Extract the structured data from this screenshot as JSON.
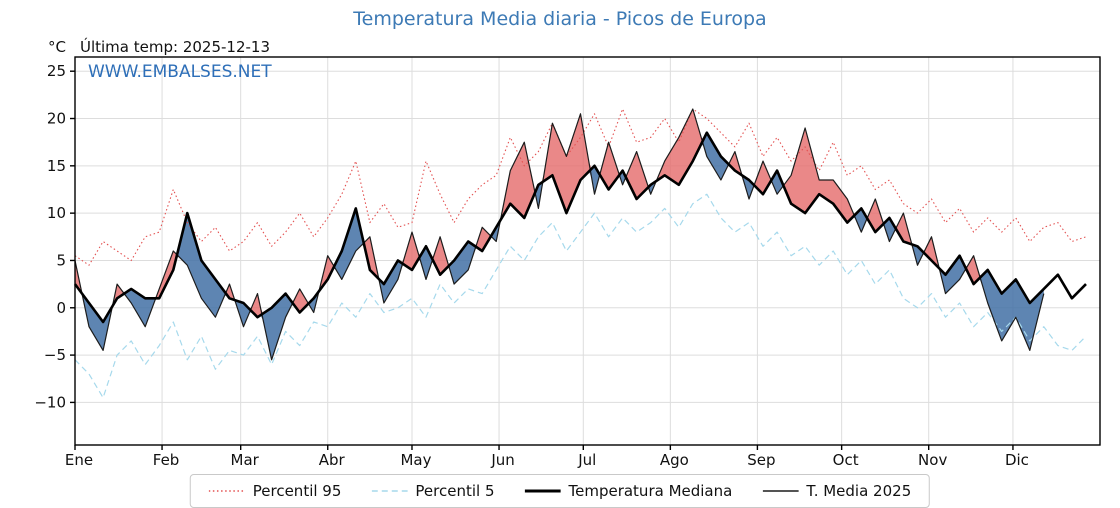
{
  "header": {
    "title": "Temperatura Media diaria - Picos de Europa",
    "unit_label": "°C",
    "last_temp_label": "Última temp: 2025-12-13",
    "watermark": "WWW.EMBALSES.NET"
  },
  "chart_data": {
    "type": "line",
    "title": "Temperatura Media diaria - Picos de Europa",
    "xlabel": "",
    "ylabel": "°C",
    "xlim": [
      0,
      365
    ],
    "ylim": [
      -14.5,
      26.5
    ],
    "grid": true,
    "legend_position": "bottom",
    "x_days": [
      0,
      5,
      10,
      15,
      20,
      25,
      30,
      35,
      40,
      45,
      50,
      55,
      60,
      65,
      70,
      75,
      80,
      85,
      90,
      95,
      100,
      105,
      110,
      115,
      120,
      125,
      130,
      135,
      140,
      145,
      150,
      155,
      160,
      165,
      170,
      175,
      180,
      185,
      190,
      195,
      200,
      205,
      210,
      215,
      220,
      225,
      230,
      235,
      240,
      245,
      250,
      255,
      260,
      265,
      270,
      275,
      280,
      285,
      290,
      295,
      300,
      305,
      310,
      315,
      320,
      325,
      330,
      335,
      340,
      345,
      350,
      355,
      360
    ],
    "x_ticks": [
      {
        "day": 0,
        "label": "Ene"
      },
      {
        "day": 31,
        "label": "Feb"
      },
      {
        "day": 59,
        "label": "Mar"
      },
      {
        "day": 90,
        "label": "Abr"
      },
      {
        "day": 120,
        "label": "May"
      },
      {
        "day": 151,
        "label": "Jun"
      },
      {
        "day": 181,
        "label": "Jul"
      },
      {
        "day": 212,
        "label": "Ago"
      },
      {
        "day": 243,
        "label": "Sep"
      },
      {
        "day": 273,
        "label": "Oct"
      },
      {
        "day": 304,
        "label": "Nov"
      },
      {
        "day": 334,
        "label": "Dic"
      }
    ],
    "y_ticks": [
      {
        "v": 25,
        "label": "25"
      },
      {
        "v": 20,
        "label": "20"
      },
      {
        "v": 15,
        "label": "15"
      },
      {
        "v": 10,
        "label": "10"
      },
      {
        "v": 5,
        "label": "5"
      },
      {
        "v": 0,
        "label": "0"
      },
      {
        "v": -5,
        "label": "−5"
      },
      {
        "v": -10,
        "label": "−10"
      }
    ],
    "series": [
      {
        "name": "Percentil 95",
        "color": "#e35151",
        "style": "dotted",
        "width": 1.1,
        "values": [
          5.5,
          4.5,
          7.0,
          6.0,
          5.0,
          7.5,
          8.0,
          12.5,
          9.0,
          7.0,
          8.5,
          6.0,
          7.0,
          9.0,
          6.5,
          8.0,
          10.0,
          7.5,
          9.5,
          12.0,
          15.5,
          9.0,
          11.0,
          8.5,
          9.0,
          15.5,
          12.0,
          9.0,
          11.5,
          13.0,
          14.0,
          18.0,
          15.0,
          16.5,
          19.5,
          16.0,
          18.0,
          20.5,
          17.0,
          21.0,
          17.5,
          18.0,
          20.0,
          17.5,
          21.0,
          20.0,
          18.5,
          17.0,
          19.5,
          16.0,
          18.0,
          15.5,
          17.0,
          14.5,
          17.5,
          14.0,
          15.0,
          12.5,
          13.5,
          11.0,
          10.0,
          11.5,
          9.0,
          10.5,
          8.0,
          9.5,
          8.0,
          9.5,
          7.0,
          8.5,
          9.0,
          7.0,
          7.5
        ]
      },
      {
        "name": "Percentil 5",
        "color": "#a6d9ec",
        "style": "dashed",
        "width": 1.2,
        "values": [
          -5.5,
          -7.0,
          -9.5,
          -5.0,
          -3.5,
          -6.0,
          -4.0,
          -1.5,
          -5.5,
          -3.0,
          -6.5,
          -4.5,
          -5.0,
          -3.0,
          -6.0,
          -2.5,
          -4.0,
          -1.5,
          -2.0,
          0.5,
          -1.0,
          1.5,
          -0.5,
          0.0,
          1.0,
          -1.0,
          2.5,
          0.5,
          2.0,
          1.5,
          4.0,
          6.5,
          5.0,
          7.5,
          9.0,
          6.0,
          8.0,
          10.0,
          7.5,
          9.5,
          8.0,
          9.0,
          10.5,
          8.5,
          11.0,
          12.0,
          9.5,
          8.0,
          9.0,
          6.5,
          8.0,
          5.5,
          6.5,
          4.5,
          6.0,
          3.5,
          5.0,
          2.5,
          4.0,
          1.0,
          0.0,
          1.5,
          -1.0,
          0.5,
          -2.0,
          -0.5,
          -2.5,
          -1.0,
          -3.5,
          -2.0,
          -4.0,
          -4.5,
          -3.0
        ]
      },
      {
        "name": "Temperatura Mediana",
        "color": "#000000",
        "style": "solid",
        "width": 2.6,
        "values": [
          2.5,
          0.5,
          -1.5,
          1.0,
          2.0,
          1.0,
          1.0,
          4.0,
          10.0,
          5.0,
          3.0,
          1.0,
          0.5,
          -1.0,
          0.0,
          1.5,
          -0.5,
          1.0,
          3.0,
          6.0,
          10.5,
          4.0,
          2.5,
          5.0,
          4.0,
          6.5,
          3.5,
          5.0,
          7.0,
          6.0,
          8.5,
          11.0,
          9.5,
          13.0,
          14.0,
          10.0,
          13.5,
          15.0,
          12.5,
          14.5,
          11.5,
          13.0,
          14.0,
          13.0,
          15.5,
          18.5,
          16.0,
          14.5,
          13.5,
          12.0,
          14.5,
          11.0,
          10.0,
          12.0,
          11.0,
          9.0,
          10.5,
          8.0,
          9.5,
          7.0,
          6.5,
          5.0,
          3.5,
          5.5,
          2.5,
          4.0,
          1.5,
          3.0,
          0.5,
          2.0,
          3.5,
          1.0,
          2.5
        ]
      },
      {
        "name": "T. Media 2025",
        "color": "#1c1c1c",
        "style": "solid",
        "width": 1.2,
        "values": [
          5,
          -2,
          -4.5,
          2.5,
          0.5,
          -2,
          2,
          6,
          4.5,
          1,
          -1,
          2.5,
          -2,
          1.5,
          -5.5,
          -1,
          2,
          -0.5,
          5.5,
          3,
          6,
          7.5,
          0.5,
          3,
          8,
          3,
          7.5,
          2.5,
          4,
          8.5,
          7,
          14.5,
          17.5,
          10.5,
          19.5,
          16,
          20.5,
          12,
          17.5,
          13,
          16.5,
          12,
          15.5,
          18,
          21,
          16,
          13.5,
          16.5,
          11.5,
          15.5,
          12,
          14,
          19,
          13.5,
          13.5,
          11.5,
          8,
          11.5,
          7,
          10,
          4.5,
          7.5,
          1.5,
          3,
          5.5,
          0.5,
          -3.5,
          -1,
          -4.5,
          1.5,
          null,
          null,
          null
        ]
      }
    ],
    "fills": {
      "between": [
        "T. Media 2025",
        "Temperatura Mediana"
      ],
      "above_color": "rgba(229,106,106,0.8)",
      "below_color": "rgba(66,112,165,0.85)"
    }
  },
  "colors": {
    "title": "#3d7ab5",
    "watermark": "#2e6fb8",
    "grid": "#dddddd",
    "frame": "#000000"
  }
}
